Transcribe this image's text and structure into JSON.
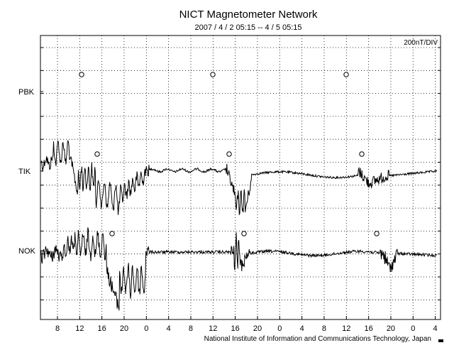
{
  "chart_data": {
    "type": "line",
    "title": "NICT Magnetometer Network",
    "subtitle": "2007 / 4 / 2   05:15 --  4 / 5   05:15",
    "scale_label": "200nT/DIV",
    "footer": "National Institute of Information and Communications Technology, Japan",
    "x_tick_labels": [
      "8",
      "12",
      "16",
      "20",
      "0",
      "4",
      "8",
      "12",
      "16",
      "20",
      "0",
      "4",
      "8",
      "12",
      "16",
      "20",
      "0",
      "4"
    ],
    "y_station_labels": [
      "PBK",
      "TIK",
      "NOK"
    ],
    "grid": true,
    "series": [
      {
        "name": "PBK",
        "markers_hours": [
          12.9,
          12.7,
          12.6
        ],
        "values": []
      },
      {
        "name": "TIK",
        "markers_hours": [
          15.5,
          15.2,
          15.0
        ]
      },
      {
        "name": "NOK",
        "markers_hours": [
          18.2,
          18.0,
          17.8
        ]
      }
    ]
  }
}
